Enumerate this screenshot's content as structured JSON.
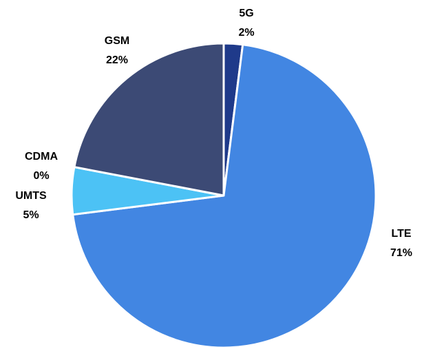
{
  "chart_data": {
    "type": "pie",
    "categories": [
      "5G",
      "LTE",
      "UMTS",
      "CDMA",
      "GSM"
    ],
    "values": [
      2,
      71,
      5,
      0,
      22
    ],
    "value_labels": [
      "2%",
      "71%",
      "5%",
      "0%",
      "22%"
    ],
    "colors": [
      "#1f3a8a",
      "#4286e2",
      "#4cc2f5",
      "#2a7fd0",
      "#3c4a75"
    ]
  }
}
